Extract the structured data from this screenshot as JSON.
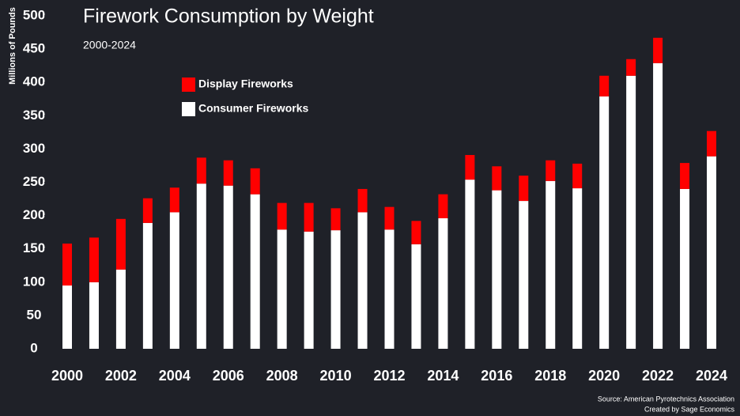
{
  "chart_data": {
    "type": "stacked_bar",
    "title": "Firework Consumption by Weight",
    "subtitle": "2000-2024",
    "y_label": "Millions of Pounds",
    "categories": [
      "2000",
      null,
      "2002",
      null,
      "2004",
      null,
      "2006",
      null,
      "2008",
      null,
      "2010",
      null,
      "2012",
      null,
      "2014",
      null,
      "2016",
      null,
      "2018",
      null,
      "2020",
      null,
      "2022",
      null,
      "2024"
    ],
    "series": [
      {
        "name": "Consumer Fireworks",
        "color": "#ffffff",
        "values": [
          95,
          100,
          119,
          189,
          205,
          248,
          245,
          232,
          179,
          176,
          178,
          205,
          179,
          157,
          196,
          254,
          238,
          222,
          252,
          241,
          379,
          410,
          429,
          240,
          289
        ]
      },
      {
        "name": "Display Fireworks",
        "color": "#ff0000",
        "values": [
          63,
          67,
          76,
          37,
          37,
          39,
          38,
          39,
          40,
          43,
          33,
          35,
          34,
          35,
          36,
          37,
          36,
          38,
          31,
          37,
          31,
          25,
          38,
          39,
          38
        ]
      }
    ],
    "ylim": [
      0,
      500
    ],
    "yticks": [
      0,
      50,
      100,
      150,
      200,
      250,
      300,
      350,
      400,
      450,
      500
    ],
    "legend": "top-left",
    "source": [
      "Source: American Pyrotechnics Association",
      "Created by Sage Economics"
    ]
  }
}
